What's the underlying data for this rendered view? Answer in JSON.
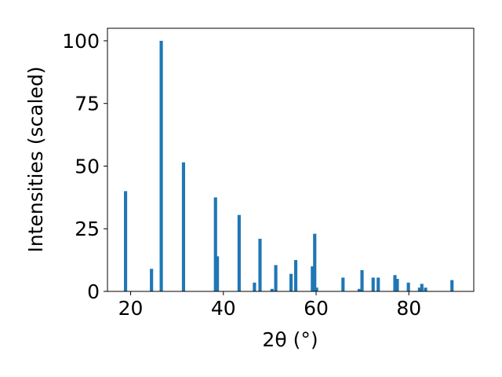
{
  "chart_data": {
    "type": "bar",
    "xlabel": "2θ (°)",
    "ylabel": "Intensities (scaled)",
    "xlim": [
      15,
      94
    ],
    "ylim": [
      0,
      105
    ],
    "x_ticks": [
      20,
      40,
      60,
      80
    ],
    "y_ticks": [
      0,
      25,
      50,
      75,
      100
    ],
    "grid": false,
    "legend": "none",
    "bar_color": "#1f77b4",
    "bar_width": 0.7,
    "series": [
      {
        "x": [
          18.9,
          24.5,
          26.6,
          31.4,
          38.3,
          38.7,
          43.4,
          46.7,
          47.9,
          50.5,
          51.3,
          54.6,
          55.6,
          59.2,
          59.7,
          60.1,
          65.8,
          69.3,
          69.9,
          72.3,
          73.4,
          77.0,
          77.5,
          79.9,
          82.3,
          82.8,
          83.6,
          89.3
        ],
        "values": [
          40,
          9,
          100,
          51.5,
          37.5,
          14,
          30.5,
          3.5,
          21,
          1,
          10.5,
          7,
          12.5,
          10,
          23,
          1.5,
          5.5,
          1,
          8.5,
          5.5,
          5.5,
          6.5,
          5,
          3.5,
          1.5,
          3,
          1.5,
          4.5
        ]
      }
    ]
  }
}
